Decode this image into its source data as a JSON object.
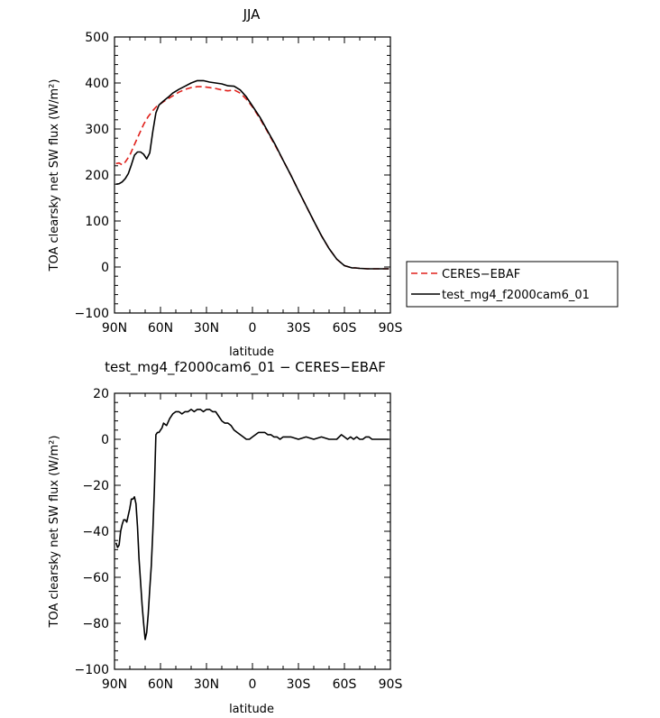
{
  "chart_data": [
    {
      "type": "line",
      "title": "JJA",
      "xlabel": "latitude",
      "ylabel": "TOA clearsky net SW flux (W/m²)",
      "xlim": [
        90,
        -90
      ],
      "ylim": [
        -100,
        500
      ],
      "x_ticks": [
        90,
        60,
        30,
        0,
        -30,
        -60,
        -90
      ],
      "x_tick_labels": [
        "90N",
        "60N",
        "30N",
        "0",
        "30S",
        "60S",
        "90S"
      ],
      "y_ticks": [
        -100,
        0,
        100,
        200,
        300,
        400,
        500
      ],
      "y_tick_labels": [
        "−100",
        "0",
        "100",
        "200",
        "300",
        "400",
        "500"
      ],
      "legend_position": "outside-right",
      "series": [
        {
          "name": "CERES−EBAF",
          "color": "#e0201b",
          "dash": "dashed",
          "x": [
            89,
            87,
            85,
            83,
            80,
            77,
            74,
            71,
            68,
            65,
            62,
            59,
            56,
            52,
            48,
            44,
            40,
            36,
            32,
            28,
            24,
            20,
            16,
            12,
            8,
            4,
            0,
            -5,
            -10,
            -15,
            -20,
            -25,
            -30,
            -35,
            -40,
            -45,
            -50,
            -55,
            -60,
            -63,
            -65,
            -67,
            -70,
            -75,
            -80,
            -85,
            -89
          ],
          "y": [
            225,
            226,
            222,
            228,
            243,
            266,
            288,
            310,
            327,
            340,
            351,
            357,
            364,
            372,
            380,
            386,
            390,
            392,
            392,
            390,
            388,
            385,
            383,
            385,
            378,
            365,
            348,
            322,
            293,
            263,
            232,
            200,
            166,
            133,
            100,
            68,
            40,
            17,
            3,
            0,
            -2,
            -2,
            -3,
            -4,
            -4,
            -4,
            -4
          ]
        },
        {
          "name": "test_mg4_f2000cam6_01",
          "color": "#000000",
          "dash": "solid",
          "x": [
            89,
            87,
            85,
            83,
            81,
            79,
            77,
            75,
            73,
            71,
            69,
            67,
            65,
            63,
            61,
            58,
            55,
            52,
            48,
            44,
            40,
            36,
            32,
            28,
            24,
            20,
            16,
            12,
            8,
            4,
            0,
            -5,
            -10,
            -15,
            -20,
            -25,
            -30,
            -35,
            -40,
            -45,
            -50,
            -55,
            -60,
            -63,
            -65,
            -67,
            -70,
            -75,
            -80,
            -85,
            -89
          ],
          "y": [
            180,
            181,
            185,
            192,
            203,
            222,
            243,
            250,
            250,
            245,
            235,
            248,
            295,
            335,
            352,
            361,
            369,
            378,
            386,
            393,
            400,
            405,
            405,
            402,
            400,
            398,
            394,
            393,
            385,
            370,
            350,
            325,
            295,
            265,
            232,
            200,
            166,
            133,
            100,
            68,
            40,
            17,
            3,
            0,
            -2,
            -2,
            -3,
            -4,
            -4,
            -4,
            -4
          ]
        }
      ]
    },
    {
      "type": "line",
      "title": "test_mg4_f2000cam6_01 − CERES−EBAF",
      "xlabel": "latitude",
      "ylabel": "TOA clearsky net SW flux (W/m²)",
      "xlim": [
        90,
        -90
      ],
      "ylim": [
        -100,
        20
      ],
      "x_ticks": [
        90,
        60,
        30,
        0,
        -30,
        -60,
        -90
      ],
      "x_tick_labels": [
        "90N",
        "60N",
        "30N",
        "0",
        "30S",
        "60S",
        "90S"
      ],
      "y_ticks": [
        -100,
        -80,
        -60,
        -40,
        -20,
        0,
        20
      ],
      "y_tick_labels": [
        "−100",
        "−80",
        "−60",
        "−40",
        "−20",
        "0",
        "20"
      ],
      "series": [
        {
          "name": "",
          "color": "#000000",
          "dash": "solid",
          "x": [
            89,
            88,
            87,
            86,
            85,
            84,
            83,
            82,
            81,
            80,
            79,
            78,
            77,
            76,
            75,
            74,
            73,
            72,
            71,
            70,
            69,
            68,
            67,
            66,
            65,
            64,
            63,
            62,
            61,
            60,
            59,
            58,
            56,
            54,
            52,
            50,
            48,
            46,
            44,
            42,
            40,
            38,
            36,
            34,
            32,
            30,
            28,
            26,
            24,
            22,
            20,
            18,
            16,
            14,
            12,
            10,
            8,
            6,
            4,
            2,
            0,
            -2,
            -4,
            -6,
            -8,
            -10,
            -12,
            -14,
            -16,
            -18,
            -20,
            -25,
            -30,
            -35,
            -40,
            -45,
            -50,
            -55,
            -58,
            -60,
            -62,
            -64,
            -66,
            -68,
            -70,
            -72,
            -74,
            -76,
            -78,
            -80,
            -85,
            -89
          ],
          "y": [
            -45,
            -47,
            -46,
            -40,
            -37,
            -35,
            -35,
            -36,
            -33,
            -30,
            -26,
            -26,
            -25,
            -28,
            -38,
            -52,
            -62,
            -72,
            -80,
            -87,
            -84,
            -76,
            -65,
            -55,
            -40,
            -22,
            2,
            3,
            3,
            4,
            5,
            7,
            6,
            9,
            11,
            12,
            12,
            11,
            12,
            12,
            13,
            12,
            13,
            13,
            12,
            13,
            13,
            12,
            12,
            10,
            8,
            7,
            7,
            6,
            4,
            3,
            2,
            1,
            0,
            0,
            1,
            2,
            3,
            3,
            3,
            2,
            2,
            1,
            1,
            0,
            1,
            1,
            0,
            1,
            0,
            1,
            0,
            0,
            2,
            1,
            0,
            1,
            0,
            1,
            0,
            0,
            1,
            1,
            0,
            0,
            0,
            0
          ]
        }
      ]
    }
  ]
}
